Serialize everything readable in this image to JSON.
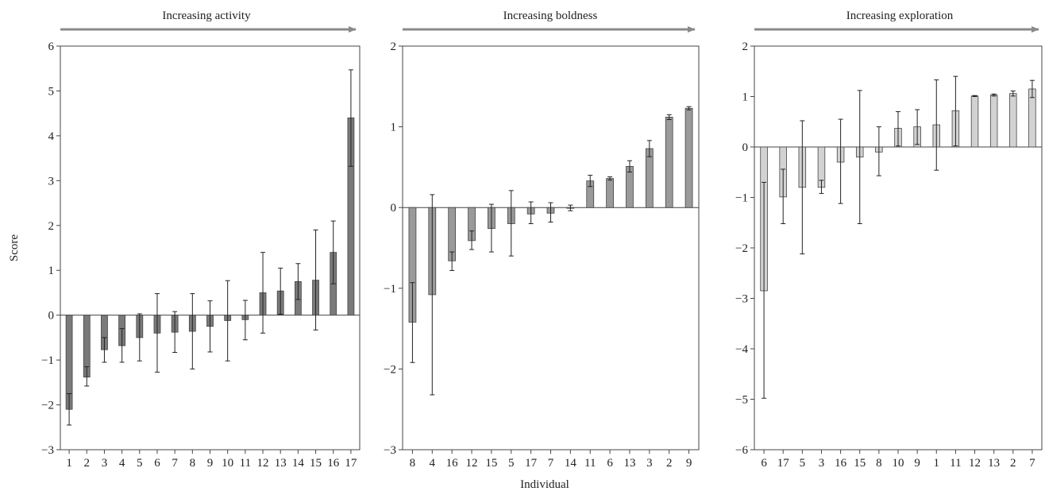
{
  "figure": {
    "ylabel": "Score",
    "xlabel": "Individual"
  },
  "chart_data": [
    {
      "type": "bar",
      "title": "Increasing activity",
      "ylabel": "Score",
      "xlabel": "",
      "ylim": [
        -3,
        6
      ],
      "yticks": [
        -3,
        -2,
        -1,
        0,
        1,
        2,
        3,
        4,
        5,
        6
      ],
      "bar_color": "#7a7a7a",
      "categories": [
        "1",
        "2",
        "3",
        "4",
        "5",
        "6",
        "7",
        "8",
        "9",
        "10",
        "11",
        "12",
        "13",
        "14",
        "15",
        "16",
        "17"
      ],
      "values": [
        -2.1,
        -1.38,
        -0.77,
        -0.68,
        -0.5,
        -0.4,
        -0.38,
        -0.36,
        -0.25,
        -0.12,
        -0.1,
        0.5,
        0.54,
        0.75,
        0.78,
        1.4,
        4.4
      ],
      "error_low": [
        -2.45,
        -1.58,
        -1.05,
        -1.05,
        -1.02,
        -1.27,
        -0.83,
        -1.2,
        -0.82,
        -1.02,
        -0.55,
        -0.4,
        0.02,
        0.35,
        -0.33,
        0.7,
        3.32
      ],
      "error_high": [
        -1.75,
        -1.15,
        -0.5,
        -0.3,
        0.03,
        0.48,
        0.08,
        0.48,
        0.32,
        0.77,
        0.33,
        1.4,
        1.05,
        1.15,
        1.9,
        2.1,
        5.47
      ]
    },
    {
      "type": "bar",
      "title": "Increasing boldness",
      "ylabel": "",
      "xlabel": "Individual",
      "ylim": [
        -3,
        2
      ],
      "yticks": [
        -3,
        -2,
        -1,
        0,
        1,
        2
      ],
      "bar_color": "#9a9a9a",
      "categories": [
        "8",
        "4",
        "16",
        "12",
        "15",
        "5",
        "17",
        "7",
        "14",
        "11",
        "6",
        "13",
        "3",
        "2",
        "9"
      ],
      "values": [
        -1.42,
        -1.08,
        -0.66,
        -0.41,
        -0.26,
        -0.2,
        -0.08,
        -0.07,
        -0.01,
        0.33,
        0.36,
        0.51,
        0.73,
        1.12,
        1.23
      ],
      "error_low": [
        -1.92,
        -2.32,
        -0.78,
        -0.52,
        -0.55,
        -0.6,
        -0.2,
        -0.18,
        -0.04,
        0.26,
        0.34,
        0.44,
        0.63,
        1.09,
        1.21
      ],
      "error_high": [
        -0.93,
        0.16,
        -0.55,
        -0.29,
        0.04,
        0.21,
        0.07,
        0.06,
        0.03,
        0.4,
        0.38,
        0.58,
        0.83,
        1.15,
        1.25
      ]
    },
    {
      "type": "bar",
      "title": "Increasing exploration",
      "ylabel": "",
      "xlabel": "",
      "ylim": [
        -6,
        2
      ],
      "yticks": [
        -6,
        -5,
        -4,
        -3,
        -2,
        -1,
        0,
        1,
        2
      ],
      "bar_color": "#d2d2d2",
      "categories": [
        "6",
        "17",
        "5",
        "3",
        "16",
        "15",
        "8",
        "10",
        "9",
        "1",
        "11",
        "12",
        "13",
        "2",
        "7"
      ],
      "values": [
        -2.85,
        -0.99,
        -0.8,
        -0.8,
        -0.3,
        -0.2,
        -0.1,
        0.37,
        0.4,
        0.44,
        0.72,
        1.01,
        1.03,
        1.06,
        1.15
      ],
      "error_low": [
        -4.98,
        -1.52,
        -2.12,
        -0.92,
        -1.12,
        -1.52,
        -0.57,
        0.02,
        0.05,
        -0.46,
        0.02,
        1.0,
        1.01,
        1.01,
        0.98
      ],
      "error_high": [
        -0.7,
        -0.44,
        0.52,
        -0.66,
        0.55,
        1.12,
        0.4,
        0.7,
        0.74,
        1.33,
        1.4,
        1.02,
        1.05,
        1.11,
        1.32
      ]
    }
  ]
}
